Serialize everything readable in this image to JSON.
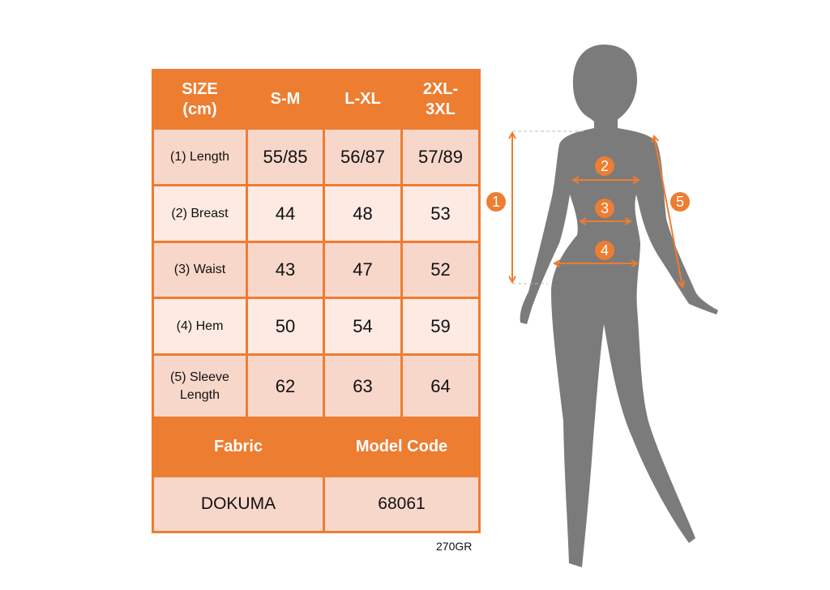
{
  "table": {
    "header": [
      "SIZE\n(cm)",
      "S-M",
      "L-XL",
      "2XL-\n3XL"
    ],
    "header_lines": [
      [
        "SIZE",
        "(cm)"
      ],
      [
        "S-M"
      ],
      [
        "L-XL"
      ],
      [
        "2XL-",
        "3XL"
      ]
    ],
    "rows": [
      {
        "label": "(1) Length",
        "values": [
          "55/85",
          "56/87",
          "57/89"
        ]
      },
      {
        "label": "(2) Breast",
        "values": [
          "44",
          "48",
          "53"
        ]
      },
      {
        "label": "(3) Waist",
        "values": [
          "43",
          "47",
          "52"
        ]
      },
      {
        "label": "(4) Hem",
        "values": [
          "50",
          "54",
          "59"
        ]
      },
      {
        "label_lines": [
          "(5) Sleeve",
          "Length"
        ],
        "values": [
          "62",
          "63",
          "64"
        ]
      }
    ],
    "footer_headers": [
      "Fabric",
      "Model Code"
    ],
    "footer_values": [
      "DOKUMA",
      "68061"
    ]
  },
  "weight_note": "270GR",
  "figure": {
    "markers": [
      "1",
      "2",
      "3",
      "4",
      "5"
    ]
  },
  "colors": {
    "accent": "#ed7d31",
    "row_dark": "#f8d7cb",
    "row_light": "#fceae3",
    "silhouette": "#7b7b7b"
  }
}
